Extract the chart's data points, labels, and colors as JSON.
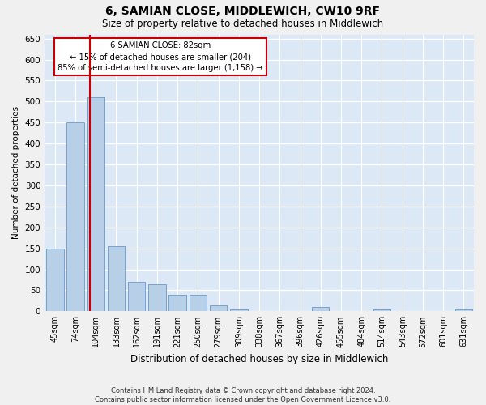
{
  "title": "6, SAMIAN CLOSE, MIDDLEWICH, CW10 9RF",
  "subtitle": "Size of property relative to detached houses in Middlewich",
  "xlabel": "Distribution of detached houses by size in Middlewich",
  "ylabel": "Number of detached properties",
  "footer_line1": "Contains HM Land Registry data © Crown copyright and database right 2024.",
  "footer_line2": "Contains public sector information licensed under the Open Government Licence v3.0.",
  "categories": [
    "45sqm",
    "74sqm",
    "104sqm",
    "133sqm",
    "162sqm",
    "191sqm",
    "221sqm",
    "250sqm",
    "279sqm",
    "309sqm",
    "338sqm",
    "367sqm",
    "396sqm",
    "426sqm",
    "455sqm",
    "484sqm",
    "514sqm",
    "543sqm",
    "572sqm",
    "601sqm",
    "631sqm"
  ],
  "values": [
    150,
    450,
    510,
    155,
    70,
    65,
    40,
    40,
    15,
    5,
    0,
    0,
    0,
    10,
    0,
    0,
    5,
    0,
    0,
    0,
    5
  ],
  "bar_color": "#b8cfe8",
  "bar_edge_color": "#6699cc",
  "background_color": "#dce8f5",
  "grid_color": "#ffffff",
  "property_label": "6 SAMIAN CLOSE: 82sqm",
  "annotation_line1": "← 15% of detached houses are smaller (204)",
  "annotation_line2": "85% of semi-detached houses are larger (1,158) →",
  "vline_color": "#cc0000",
  "annotation_box_color": "#ffffff",
  "annotation_box_edge": "#cc0000",
  "vline_x_index": 1.73,
  "ylim": [
    0,
    660
  ],
  "yticks": [
    0,
    50,
    100,
    150,
    200,
    250,
    300,
    350,
    400,
    450,
    500,
    550,
    600,
    650
  ],
  "fig_bg": "#f0f0f0"
}
